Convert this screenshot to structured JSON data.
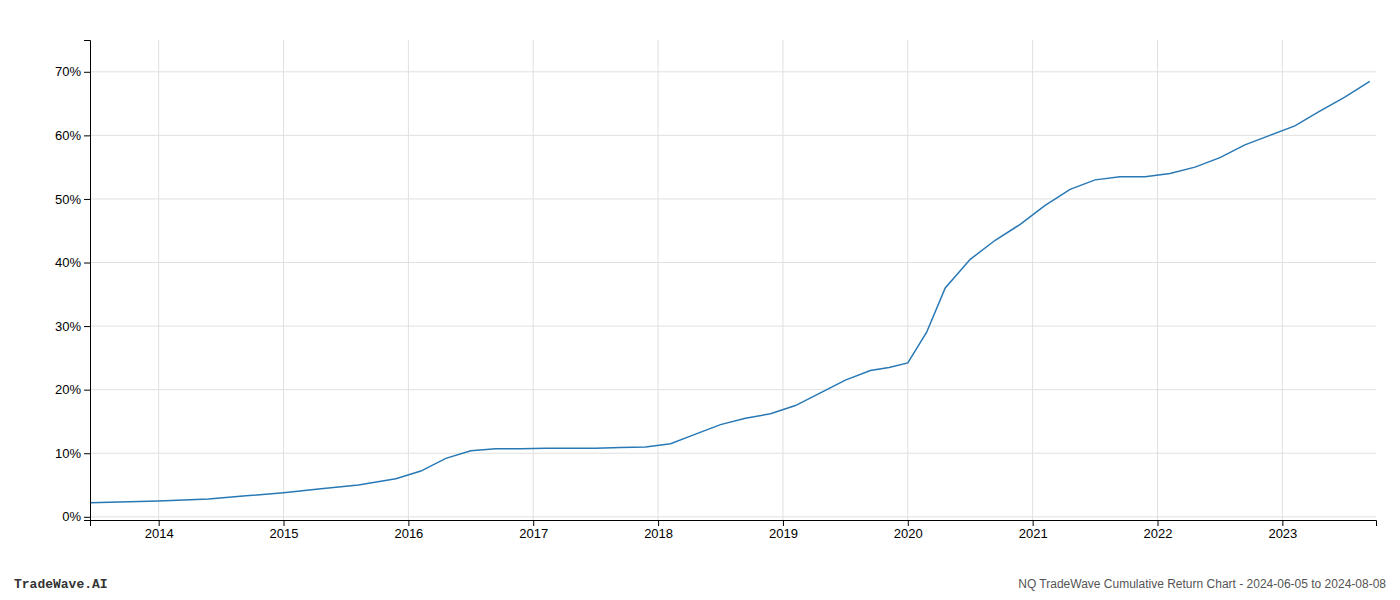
{
  "chart_data": {
    "type": "line",
    "title": "NQ TradeWave Cumulative Return Chart - 2024-06-05 to 2024-08-08",
    "annotations": [
      "TradeWave.AI"
    ],
    "color": "#2878b5",
    "grid": true,
    "x": [
      2013.45,
      2014.0,
      2014.4,
      2014.7,
      2015.0,
      2015.3,
      2015.6,
      2015.9,
      2016.1,
      2016.3,
      2016.5,
      2016.7,
      2016.9,
      2017.1,
      2017.3,
      2017.5,
      2017.7,
      2017.9,
      2018.1,
      2018.3,
      2018.5,
      2018.7,
      2018.9,
      2019.1,
      2019.3,
      2019.5,
      2019.7,
      2019.85,
      2020.0,
      2020.15,
      2020.3,
      2020.5,
      2020.7,
      2020.9,
      2021.1,
      2021.3,
      2021.5,
      2021.7,
      2021.9,
      2022.1,
      2022.3,
      2022.5,
      2022.7,
      2022.9,
      2023.1,
      2023.3,
      2023.5,
      2023.7
    ],
    "values": [
      0.022,
      0.025,
      0.028,
      0.033,
      0.038,
      0.044,
      0.05,
      0.06,
      0.072,
      0.092,
      0.104,
      0.107,
      0.107,
      0.108,
      0.108,
      0.108,
      0.109,
      0.11,
      0.115,
      0.13,
      0.145,
      0.155,
      0.162,
      0.175,
      0.195,
      0.215,
      0.23,
      0.235,
      0.242,
      0.29,
      0.36,
      0.405,
      0.435,
      0.46,
      0.49,
      0.515,
      0.53,
      0.535,
      0.535,
      0.54,
      0.55,
      0.565,
      0.585,
      0.6,
      0.615,
      0.638,
      0.66,
      0.685
    ],
    "xlim": [
      2013.45,
      2023.75
    ],
    "ylim": [
      -0.005,
      0.75
    ],
    "xticks": [
      2014,
      2015,
      2016,
      2017,
      2018,
      2019,
      2020,
      2021,
      2022,
      2023
    ],
    "yticks": [
      {
        "value": 0.0,
        "label": "0%"
      },
      {
        "value": 0.1,
        "label": "10%"
      },
      {
        "value": 0.2,
        "label": "20%"
      },
      {
        "value": 0.3,
        "label": "30%"
      },
      {
        "value": 0.4,
        "label": "40%"
      },
      {
        "value": 0.5,
        "label": "50%"
      },
      {
        "value": 0.6,
        "label": "60%"
      },
      {
        "value": 0.7,
        "label": "70%"
      }
    ]
  }
}
